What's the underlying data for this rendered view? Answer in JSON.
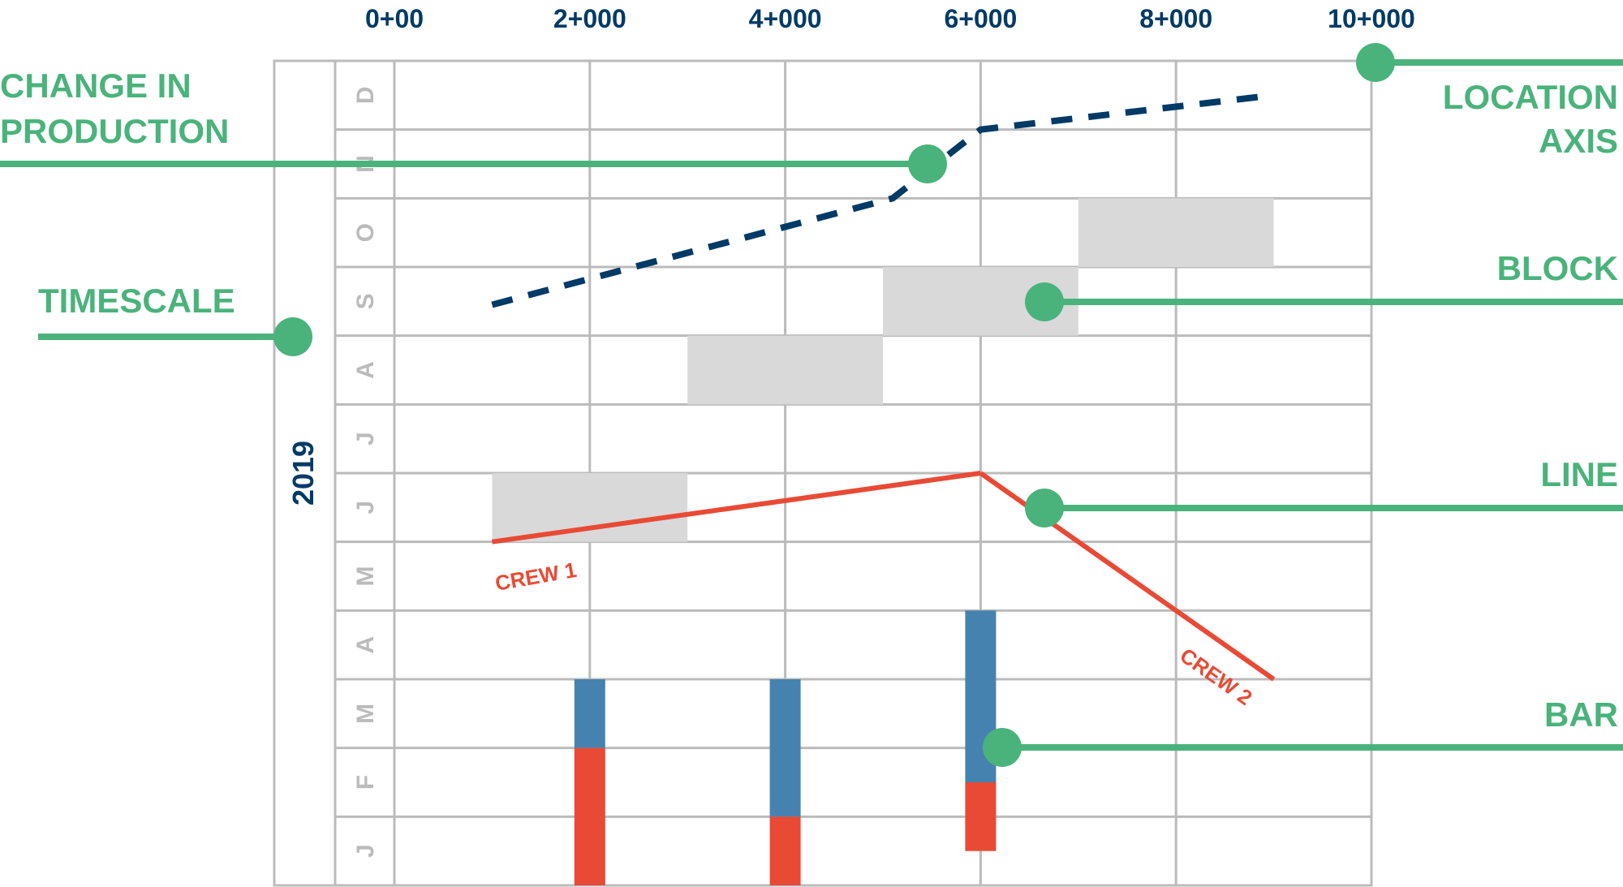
{
  "colors": {
    "grid": "#bbbbbb",
    "block": "#d9d9d9",
    "dashed": "#003a66",
    "line": "#e84a35",
    "bar_top": "#4682b0",
    "bar_bottom": "#e84a35",
    "callout": "#4ab37b",
    "axis_text": "#003a66"
  },
  "chart_data": {
    "type": "line-of-balance",
    "location_ticks": [
      "0+00",
      "2+000",
      "4+000",
      "6+000",
      "8+000",
      "10+000"
    ],
    "location_range": [
      0,
      10000
    ],
    "year": "2019",
    "months": [
      "J",
      "F",
      "M",
      "A",
      "M",
      "J",
      "J",
      "A",
      "S",
      "O",
      "N",
      "D"
    ],
    "blocks": [
      {
        "start": 1000,
        "end": 3000,
        "month": "J"
      },
      {
        "start": 3000,
        "end": 5000,
        "month": "A"
      },
      {
        "start": 5000,
        "end": 7000,
        "month": "S"
      },
      {
        "start": 7000,
        "end": 9000,
        "month": "O"
      }
    ],
    "dashed_line": [
      [
        1000,
        8.45
      ],
      [
        5100,
        10.0
      ],
      [
        6000,
        11.0
      ],
      [
        9000,
        11.5
      ]
    ],
    "lines": [
      {
        "name": "CREW 1",
        "points": [
          [
            1000,
            5.0
          ],
          [
            6000,
            6.0
          ]
        ]
      },
      {
        "name": "CREW 2",
        "points": [
          [
            6000,
            6.0
          ],
          [
            9000,
            3.0
          ]
        ]
      }
    ],
    "bars": [
      {
        "location": 2000,
        "bottom_start": 0,
        "bottom_end": 2,
        "top_end": 3
      },
      {
        "location": 4000,
        "bottom_start": 0,
        "bottom_end": 1,
        "top_end": 3
      },
      {
        "location": 6000,
        "bottom_start": 0.5,
        "bottom_end": 1.5,
        "top_end": 4
      }
    ]
  },
  "callouts": {
    "change_in_production": [
      "CHANGE IN",
      "PRODUCTION"
    ],
    "timescale": "TIMESCALE",
    "location_axis": [
      "LOCATION",
      "AXIS"
    ],
    "block": "BLOCK",
    "line": "LINE",
    "bar": "BAR"
  }
}
